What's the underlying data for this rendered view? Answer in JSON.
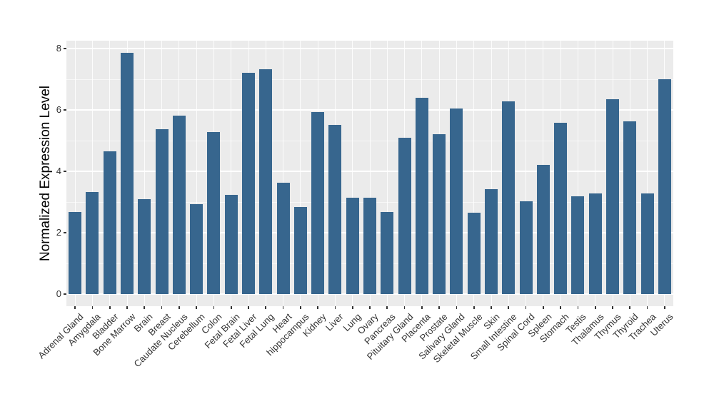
{
  "chart_data": {
    "type": "bar",
    "title": "",
    "xlabel": "",
    "ylabel": "Normalized Expression Level",
    "ylim": [
      0,
      8.25
    ],
    "yticks": [
      0,
      2,
      4,
      6,
      8
    ],
    "yticks_minor": [
      1,
      3,
      5,
      7
    ],
    "grid": "on",
    "legend": "none",
    "colors": {
      "bar": "#37668E",
      "panel_background": "#EBEBEB",
      "gridline": "#FFFFFF",
      "axis_text": "#333333",
      "axis_title": "#000000"
    },
    "categories": [
      "Adrenal Gland",
      "Amygdala",
      "Bladder",
      "Bone Marrow",
      "Brain",
      "Breast",
      "Caudate Nucleus",
      "Cerebellum",
      "Colon",
      "Fetal Brain",
      "Fetal Liver",
      "Fetal Lung",
      "Heart",
      "hippocampus",
      "Kidney",
      "Liver",
      "Lung",
      "Ovary",
      "Pancreas",
      "Pituitary Gland",
      "Placenta",
      "Prostate",
      "Salivary Gland",
      "Skeletal Muscle",
      "Skin",
      "Small Intestine",
      "Spinal Cord",
      "Spleen",
      "Stomach",
      "Testis",
      "Thalamus",
      "Thymus",
      "Thyroid",
      "Trachea",
      "Uterus"
    ],
    "values": [
      2.67,
      3.33,
      4.66,
      7.85,
      3.09,
      5.37,
      5.82,
      2.92,
      5.28,
      3.23,
      7.21,
      7.32,
      3.63,
      2.83,
      5.94,
      5.52,
      3.15,
      3.15,
      2.67,
      5.1,
      6.4,
      5.2,
      6.05,
      2.65,
      3.42,
      6.28,
      3.02,
      4.22,
      5.58,
      3.19,
      3.28,
      6.35,
      5.63,
      3.28,
      7.0
    ]
  }
}
